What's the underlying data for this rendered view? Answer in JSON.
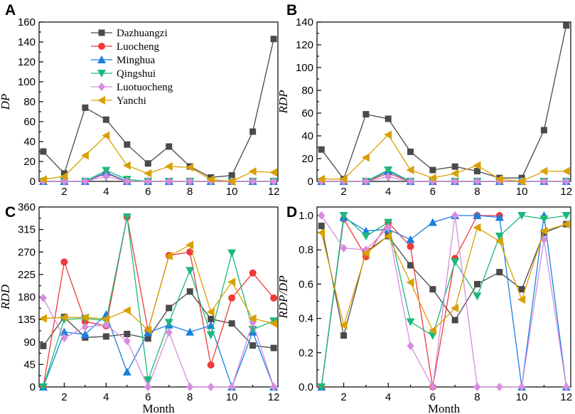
{
  "series_meta": [
    {
      "name": "Dazhuangzi",
      "color": "#4a4a4a",
      "marker": "square"
    },
    {
      "name": "Luocheng",
      "color": "#ee3b3b",
      "marker": "circle"
    },
    {
      "name": "Minghua",
      "color": "#1a7fe0",
      "marker": "triangle-up"
    },
    {
      "name": "Qingshui",
      "color": "#1db87a",
      "marker": "triangle-down"
    },
    {
      "name": "Luotuocheng",
      "color": "#d68ce0",
      "marker": "diamond"
    },
    {
      "name": "Yanchi",
      "color": "#d9a000",
      "marker": "triangle-left"
    }
  ],
  "chart_data": [
    {
      "id": "A",
      "panel_label": "A",
      "type": "line",
      "ylabel": "DP",
      "xlabel": "",
      "xlim": [
        0.8,
        12.2
      ],
      "ylim": [
        0,
        160
      ],
      "xticks": [
        2,
        4,
        6,
        8,
        10,
        12
      ],
      "yticks": [
        0,
        20,
        40,
        60,
        80,
        100,
        120,
        140,
        160
      ],
      "x": [
        1,
        2,
        3,
        4,
        5,
        6,
        7,
        8,
        9,
        10,
        11,
        12
      ],
      "legend": "top-left",
      "series": [
        {
          "name": "Dazhuangzi",
          "values": [
            30,
            8,
            74,
            62,
            37,
            18,
            35,
            15,
            4,
            6,
            50,
            143
          ]
        },
        {
          "name": "Luocheng",
          "values": [
            0,
            0,
            0,
            8,
            0,
            0,
            0,
            0,
            0,
            0,
            0,
            0
          ]
        },
        {
          "name": "Minghua",
          "values": [
            0,
            0,
            0,
            9,
            0,
            0,
            0,
            0,
            0,
            0,
            0,
            0
          ]
        },
        {
          "name": "Qingshui",
          "values": [
            0,
            0,
            0,
            11,
            2,
            0,
            0,
            0,
            0,
            0,
            0,
            0
          ]
        },
        {
          "name": "Luotuocheng",
          "values": [
            0,
            0,
            0,
            5,
            0,
            0,
            0,
            0,
            0,
            0,
            0,
            0
          ]
        },
        {
          "name": "Yanchi",
          "values": [
            2,
            5,
            26,
            46,
            16,
            8,
            15,
            14,
            2,
            0,
            10,
            9
          ]
        }
      ]
    },
    {
      "id": "B",
      "panel_label": "B",
      "type": "line",
      "ylabel": "RDP",
      "xlabel": "",
      "xlim": [
        0.8,
        12.2
      ],
      "ylim": [
        0,
        140
      ],
      "xticks": [
        2,
        4,
        6,
        8,
        10,
        12
      ],
      "yticks": [
        0,
        20,
        40,
        60,
        80,
        100,
        120,
        140
      ],
      "x": [
        1,
        2,
        3,
        4,
        5,
        6,
        7,
        8,
        9,
        10,
        11,
        12
      ],
      "series": [
        {
          "name": "Dazhuangzi",
          "values": [
            28,
            2,
            59,
            55,
            26,
            10,
            13,
            9,
            3,
            3,
            45,
            137
          ]
        },
        {
          "name": "Luocheng",
          "values": [
            0,
            0,
            0,
            7,
            0,
            0,
            0,
            0,
            0,
            0,
            0,
            0
          ]
        },
        {
          "name": "Minghua",
          "values": [
            0,
            0,
            0,
            9,
            0,
            0,
            0,
            0,
            0,
            0,
            0,
            0
          ]
        },
        {
          "name": "Qingshui",
          "values": [
            0,
            0,
            0,
            10,
            0,
            0,
            0,
            0,
            0,
            0,
            0,
            0
          ]
        },
        {
          "name": "Luotuocheng",
          "values": [
            0,
            0,
            0,
            4,
            0,
            0,
            0,
            0,
            0,
            0,
            0,
            0
          ]
        },
        {
          "name": "Yanchi",
          "values": [
            2,
            2,
            21,
            41,
            10,
            3,
            7,
            14,
            2,
            0,
            9,
            9
          ]
        }
      ]
    },
    {
      "id": "C",
      "panel_label": "C",
      "type": "line",
      "ylabel": "RDD",
      "xlabel": "Month",
      "xlim": [
        0.8,
        12.2
      ],
      "ylim": [
        0,
        360
      ],
      "xticks": [
        2,
        4,
        6,
        8,
        10,
        12
      ],
      "yticks": [
        0,
        45,
        90,
        135,
        180,
        225,
        270,
        315,
        360
      ],
      "x": [
        1,
        2,
        3,
        4,
        5,
        6,
        7,
        8,
        9,
        10,
        11,
        12
      ],
      "series": [
        {
          "name": "Dazhuangzi",
          "values": [
            82,
            140,
            99,
            101,
            106,
            97,
            158,
            191,
            136,
            127,
            83,
            78
          ]
        },
        {
          "name": "Luocheng",
          "values": [
            0,
            250,
            131,
            122,
            340,
            113,
            263,
            270,
            44,
            178,
            228,
            178
          ]
        },
        {
          "name": "Minghua",
          "values": [
            0,
            110,
            105,
            145,
            30,
            109,
            124,
            110,
            123,
            0,
            110,
            0
          ]
        },
        {
          "name": "Qingshui",
          "values": [
            0,
            135,
            137,
            133,
            340,
            14,
            129,
            233,
            104,
            268,
            115,
            132
          ]
        },
        {
          "name": "Luotuocheng",
          "values": [
            178,
            98,
            120,
            124,
            92,
            0,
            109,
            0,
            0,
            0,
            129,
            0
          ]
        },
        {
          "name": "Yanchi",
          "values": [
            137,
            139,
            139,
            136,
            153,
            114,
            262,
            284,
            150,
            210,
            137,
            127
          ]
        }
      ]
    },
    {
      "id": "D",
      "panel_label": "D",
      "type": "line",
      "ylabel": "RDP/DP",
      "xlabel": "Month",
      "xlim": [
        0.8,
        12.2
      ],
      "ylim": [
        0,
        1.05
      ],
      "xticks": [
        2,
        4,
        6,
        8,
        10,
        12
      ],
      "yticks": [
        0,
        0.2,
        0.4,
        0.6,
        0.8,
        1.0
      ],
      "ytick_labels": [
        "0.0",
        "0.2",
        "0.4",
        "0.6",
        "0.8",
        "1.0"
      ],
      "x": [
        1,
        2,
        3,
        4,
        5,
        6,
        7,
        8,
        9,
        10,
        11,
        12
      ],
      "series": [
        {
          "name": "Dazhuangzi",
          "values": [
            0.94,
            0.3,
            0.79,
            0.88,
            0.71,
            0.57,
            0.39,
            0.6,
            0.67,
            0.57,
            0.9,
            0.95
          ]
        },
        {
          "name": "Luocheng",
          "values": [
            0,
            0.98,
            0.76,
            0.96,
            0.82,
            0,
            0.75,
            1.0,
            1.0,
            null,
            null,
            null
          ]
        },
        {
          "name": "Minghua",
          "values": [
            0,
            0.99,
            0.91,
            0.92,
            0.86,
            0.96,
            1.0,
            1.0,
            0.99,
            0,
            1.0,
            0
          ]
        },
        {
          "name": "Qingshui",
          "values": [
            0,
            1.0,
            0.88,
            0.96,
            0.38,
            0.3,
            0.73,
            0.53,
            0.88,
            1.0,
            0.98,
            1.0
          ]
        },
        {
          "name": "Luotuocheng",
          "values": [
            1.0,
            0.81,
            0.8,
            0.93,
            0.24,
            0,
            1.0,
            0,
            0,
            0,
            0.86,
            0
          ]
        },
        {
          "name": "Yanchi",
          "values": [
            0.9,
            0.36,
            0.78,
            0.88,
            0.61,
            0.33,
            0.46,
            0.93,
            0.85,
            0.51,
            0.91,
            0.95
          ]
        }
      ]
    }
  ]
}
